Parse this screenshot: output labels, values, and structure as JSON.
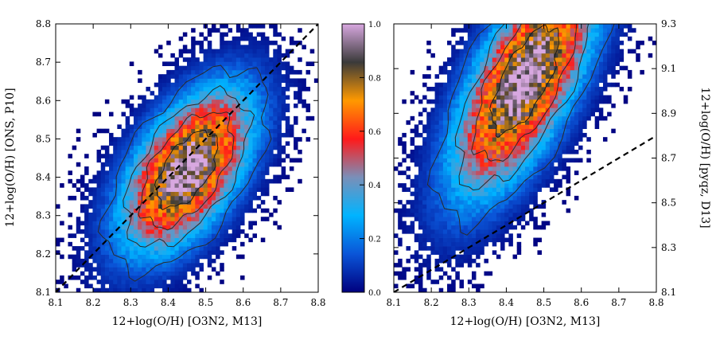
{
  "chart_data": [
    {
      "type": "heatmap",
      "xlabel": "12+log(O/H) [O3N2, M13]",
      "ylabel": "12+log(O/H) [ONS, P10]",
      "ylabel_side": "left",
      "xlim": [
        8.1,
        8.8
      ],
      "ylim": [
        8.1,
        8.8
      ],
      "xticks": [
        "8.1",
        "8.2",
        "8.3",
        "8.4",
        "8.5",
        "8.6",
        "8.7",
        "8.8"
      ],
      "yticks": [
        "8.1",
        "8.2",
        "8.3",
        "8.4",
        "8.5",
        "8.6",
        "8.7",
        "8.8"
      ],
      "density_peak": {
        "x": 8.45,
        "y": 8.42
      },
      "density_spread": {
        "major": 0.17,
        "minor": 0.055,
        "angle_deg": 55
      },
      "one_to_one_line": {
        "x": [
          8.1,
          8.8
        ],
        "y": [
          8.1,
          8.8
        ],
        "style": "dashed"
      },
      "contour_levels": [
        0.2,
        0.4,
        0.6,
        0.8
      ]
    },
    {
      "type": "heatmap",
      "xlabel": "12+log(O/H) [O3N2, M13]",
      "ylabel": "12+log(O/H) [pyqz, D13]",
      "ylabel_side": "right",
      "xlim": [
        8.1,
        8.8
      ],
      "ylim": [
        8.1,
        9.3
      ],
      "xticks": [
        "8.1",
        "8.2",
        "8.3",
        "8.4",
        "8.5",
        "8.6",
        "8.7",
        "8.8"
      ],
      "yticks": [
        "8.1",
        "8.3",
        "8.5",
        "8.7",
        "8.9",
        "9.1",
        "9.3"
      ],
      "density_peak": {
        "x": 8.45,
        "y": 9.05
      },
      "density_spread": {
        "major": 0.23,
        "minor": 0.055,
        "angle_deg": 62
      },
      "one_to_one_line": {
        "x": [
          8.1,
          8.8
        ],
        "y": [
          8.1,
          8.8
        ],
        "style": "dashed"
      },
      "contour_levels": [
        0.2,
        0.4,
        0.6,
        0.8
      ]
    }
  ],
  "colorbar": {
    "min": 0.0,
    "max": 1.0,
    "ticks": [
      "0.0",
      "0.2",
      "0.4",
      "0.6",
      "0.8",
      "1.0"
    ],
    "colors": [
      "#00007f",
      "#0a55d8",
      "#00b4ff",
      "#7a8fb8",
      "#ff1a1a",
      "#ff9900",
      "#3a3a3a",
      "#d8a8e0"
    ]
  }
}
